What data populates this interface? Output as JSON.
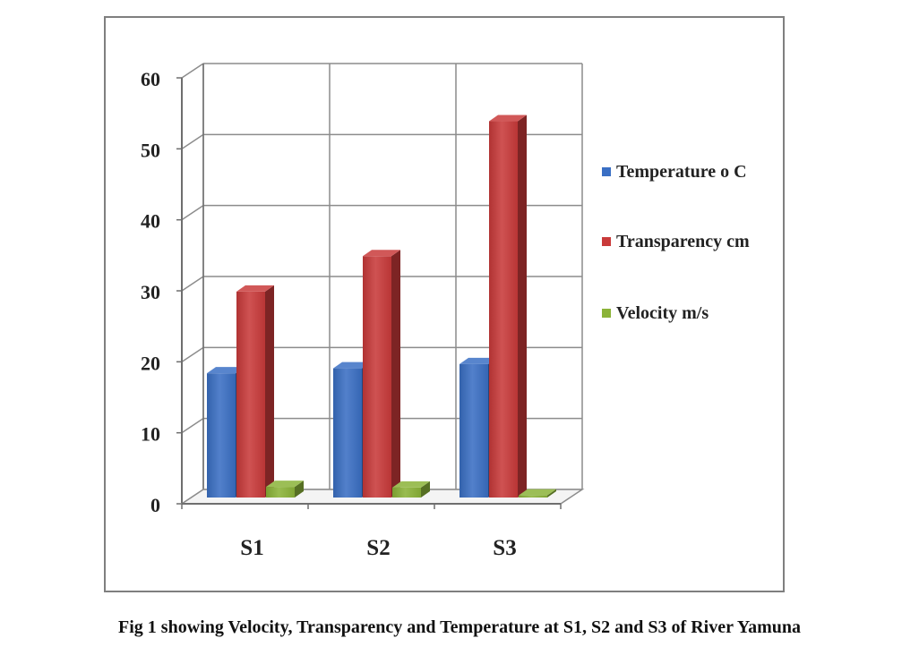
{
  "caption": "Fig 1 showing Velocity, Transparency and Temperature at S1, S2 and S3 of River Yamuna",
  "chart_data": {
    "type": "bar",
    "style": "3d-clustered-column",
    "categories": [
      "S1",
      "S2",
      "S3"
    ],
    "series": [
      {
        "name": "Temperature o C",
        "values": [
          17.5,
          18.2,
          18.8
        ],
        "color": "#3a6fc4"
      },
      {
        "name": "Transparency cm",
        "values": [
          29,
          34,
          53
        ],
        "color": "#c93a3a"
      },
      {
        "name": "Velocity m/s",
        "values": [
          1.5,
          1.4,
          0.3
        ],
        "color": "#8bb338"
      }
    ],
    "ylim": [
      0,
      60
    ],
    "yticks": [
      "0",
      "10",
      "20",
      "30",
      "40",
      "50",
      "60"
    ],
    "grid": true,
    "legend": "right"
  }
}
